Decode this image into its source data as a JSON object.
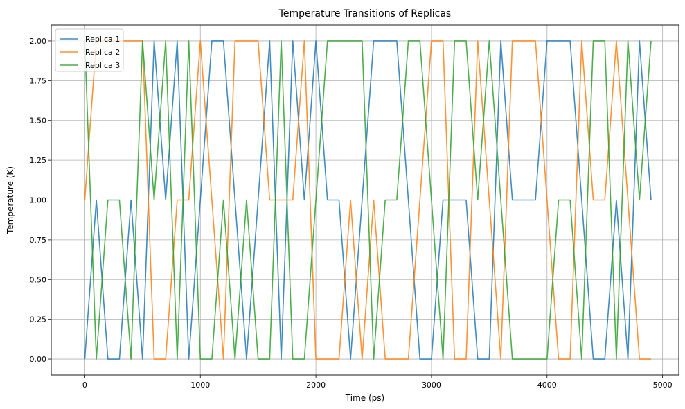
{
  "chart_data": {
    "type": "line",
    "title": "Temperature Transitions of Replicas",
    "xlabel": "Time (ps)",
    "ylabel": "Temperature (K)",
    "xlim": [
      -290,
      5140
    ],
    "ylim": [
      -0.1,
      2.1
    ],
    "xticks": [
      0,
      1000,
      2000,
      3000,
      4000,
      5000
    ],
    "xtick_labels": [
      "0",
      "1000",
      "2000",
      "3000",
      "4000",
      "5000"
    ],
    "yticks": [
      0,
      0.25,
      0.5,
      0.75,
      1,
      1.25,
      1.5,
      1.75,
      2
    ],
    "ytick_labels": [
      "0.00",
      "0.25",
      "0.50",
      "0.75",
      "1.00",
      "1.25",
      "1.50",
      "1.75",
      "2.00"
    ],
    "grid": true,
    "legend_position": "upper left",
    "x": [
      0,
      100,
      200,
      300,
      400,
      500,
      600,
      700,
      800,
      900,
      1000,
      1100,
      1200,
      1300,
      1400,
      1500,
      1600,
      1700,
      1800,
      1900,
      2000,
      2100,
      2200,
      2300,
      2400,
      2500,
      2600,
      2700,
      2800,
      2900,
      3000,
      3100,
      3200,
      3300,
      3400,
      3500,
      3600,
      3700,
      3800,
      3900,
      4000,
      4100,
      4200,
      4300,
      4400,
      4500,
      4600,
      4700,
      4800,
      4900
    ],
    "series": [
      {
        "name": "Replica 1",
        "color": "#1f77b4",
        "values": [
          0,
          1,
          0,
          0,
          1,
          0,
          2,
          1,
          2,
          0,
          1,
          2,
          2,
          1,
          0,
          1,
          2,
          0,
          2,
          1,
          2,
          1,
          1,
          0,
          1,
          2,
          2,
          2,
          1,
          0,
          0,
          1,
          1,
          1,
          0,
          0,
          2,
          1,
          1,
          1,
          2,
          2,
          2,
          1,
          0,
          0,
          1,
          0,
          2,
          1
        ]
      },
      {
        "name": "Replica 2",
        "color": "#ff7f0e",
        "values": [
          1,
          2,
          2,
          2,
          2,
          2,
          0,
          0,
          1,
          1,
          2,
          1,
          0,
          2,
          2,
          2,
          1,
          1,
          1,
          2,
          0,
          0,
          0,
          1,
          0,
          1,
          0,
          0,
          0,
          1,
          2,
          2,
          0,
          0,
          2,
          1,
          0,
          2,
          2,
          2,
          1,
          0,
          0,
          2,
          1,
          1,
          2,
          1,
          0,
          0
        ]
      },
      {
        "name": "Replica 3",
        "color": "#2ca02c",
        "values": [
          2,
          0,
          1,
          1,
          0,
          2,
          1,
          2,
          0,
          2,
          0,
          0,
          1,
          0,
          1,
          0,
          0,
          2,
          0,
          0,
          1,
          2,
          2,
          2,
          2,
          0,
          1,
          1,
          2,
          2,
          1,
          0,
          2,
          2,
          1,
          2,
          1,
          0,
          0,
          0,
          0,
          1,
          1,
          0,
          2,
          2,
          0,
          2,
          1,
          2
        ]
      }
    ]
  }
}
